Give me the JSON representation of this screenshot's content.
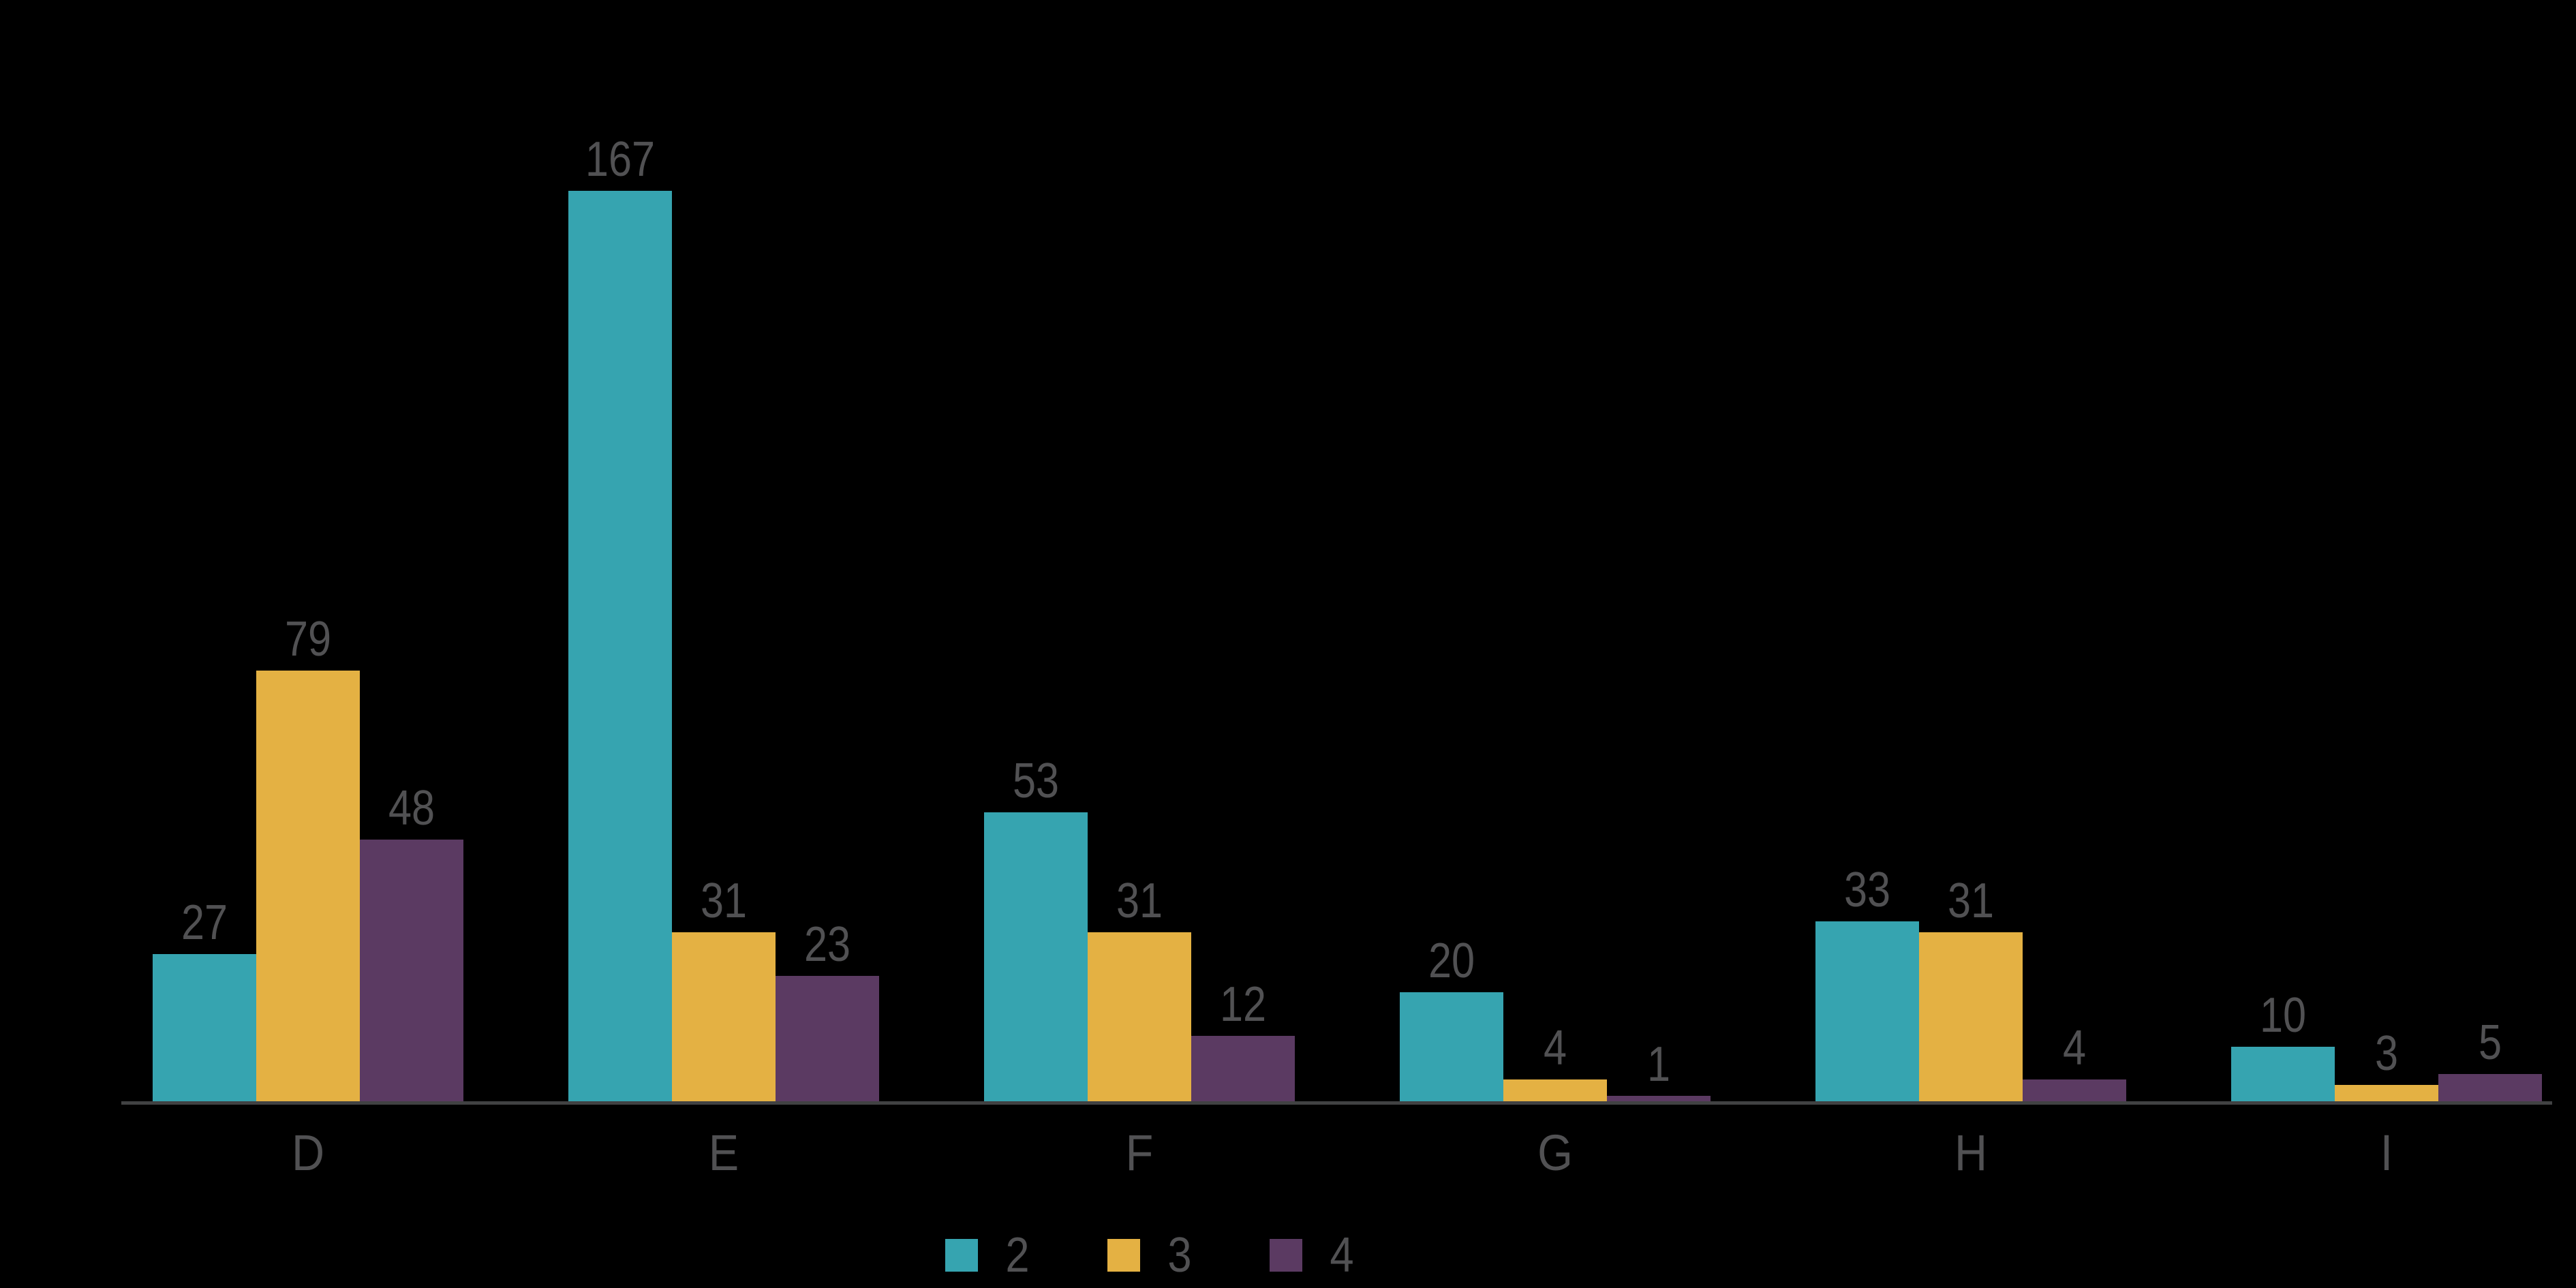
{
  "chart_data": {
    "type": "bar",
    "categories": [
      "D",
      "E",
      "F",
      "G",
      "H",
      "I"
    ],
    "series": [
      {
        "name": "2",
        "color": "#36A4B0",
        "values": [
          27,
          167,
          53,
          20,
          33,
          10
        ]
      },
      {
        "name": "3",
        "color": "#E4B143",
        "values": [
          79,
          31,
          31,
          4,
          31,
          3
        ]
      },
      {
        "name": "4",
        "color": "#5B3A62",
        "values": [
          48,
          23,
          12,
          1,
          4,
          5
        ]
      }
    ],
    "title": "",
    "xlabel": "",
    "ylabel": "",
    "ylim": [
      0,
      167
    ],
    "grid": false,
    "value_labels_shown": true,
    "legend_position": "bottom",
    "legend_labels": [
      "2",
      "3",
      "4"
    ],
    "background_color": "#000000",
    "text_color": "#515153",
    "axis_color": "#414243"
  }
}
